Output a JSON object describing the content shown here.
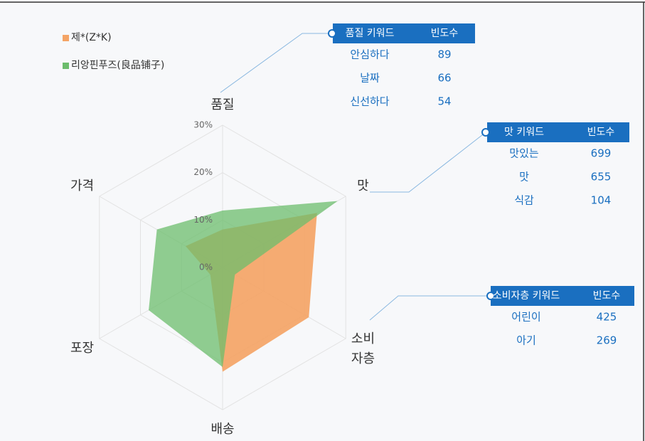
{
  "chart_data": {
    "type": "radar",
    "categories": [
      "품질",
      "맛",
      "소비\n자층",
      "배송",
      "포장",
      "가격"
    ],
    "series": [
      {
        "name": "제*(Z*K)",
        "color": "#f4a466",
        "values": [
          8,
          23,
          21,
          22,
          3,
          9
        ]
      },
      {
        "name": "리앙핀푸즈(良品铺子)",
        "color": "#6cbd6c",
        "values": [
          12,
          28,
          3,
          21,
          18,
          16
        ]
      }
    ],
    "rlim": [
      0,
      30
    ],
    "rticks": [
      {
        "value": 0,
        "label": "0%"
      },
      {
        "value": 10,
        "label": "10%"
      },
      {
        "value": 20,
        "label": "20%"
      },
      {
        "value": 30,
        "label": "30%"
      }
    ],
    "grid": true,
    "legend": "upper left",
    "keyword_tables": [
      {
        "header": [
          "품질 키워드",
          "빈도수"
        ],
        "rows": [
          [
            "안심하다",
            "89"
          ],
          [
            "날짜",
            "66"
          ],
          [
            "신선하다",
            "54"
          ]
        ]
      },
      {
        "header": [
          "맛 키워드",
          "빈도수"
        ],
        "rows": [
          [
            "맛있는",
            "699"
          ],
          [
            "맛",
            "655"
          ],
          [
            "식감",
            "104"
          ]
        ]
      },
      {
        "header": [
          "소비자층 키워드",
          "빈도수"
        ],
        "rows": [
          [
            "어린이",
            "425"
          ],
          [
            "아기",
            "269"
          ]
        ]
      }
    ]
  }
}
